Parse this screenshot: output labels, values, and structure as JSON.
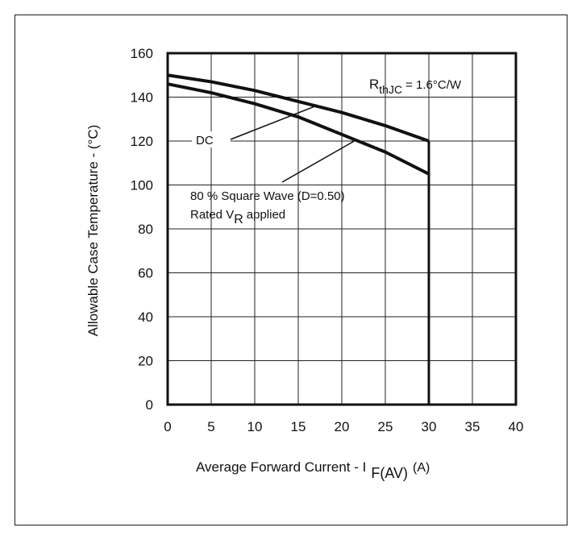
{
  "chart_data": {
    "type": "line",
    "xlabel_main": "Average Forward Current - I",
    "xlabel_sub": "F(AV)",
    "xlabel_unit": "(A)",
    "ylabel": "Allowable Case Temperature - (°C)",
    "xlim": [
      0,
      40
    ],
    "ylim": [
      0,
      160
    ],
    "x_ticks": [
      0,
      5,
      10,
      15,
      20,
      25,
      30,
      35,
      40
    ],
    "y_ticks": [
      0,
      20,
      40,
      60,
      80,
      100,
      120,
      140,
      160
    ],
    "grid": true,
    "series": [
      {
        "name": "DC",
        "x": [
          0,
          5,
          10,
          15,
          20,
          25,
          30
        ],
        "y": [
          150,
          147,
          143,
          138,
          133,
          127,
          120
        ]
      },
      {
        "name": "80 % Square Wave (D=0.50)",
        "x": [
          0,
          5,
          10,
          15,
          20,
          25,
          30
        ],
        "y": [
          146,
          142,
          137,
          131,
          123,
          115,
          105
        ]
      }
    ],
    "vertical_limit_x": 30,
    "annotations": {
      "rthjc_symbol": "R",
      "rthjc_sub": "thJC",
      "rthjc_value": "= 1.6°C/W",
      "dc_label": "DC",
      "wave_label": "80 % Square Wave (D=0.50)",
      "rated_prefix": "Rated V",
      "rated_sub": "R",
      "rated_suffix": "applied"
    }
  }
}
